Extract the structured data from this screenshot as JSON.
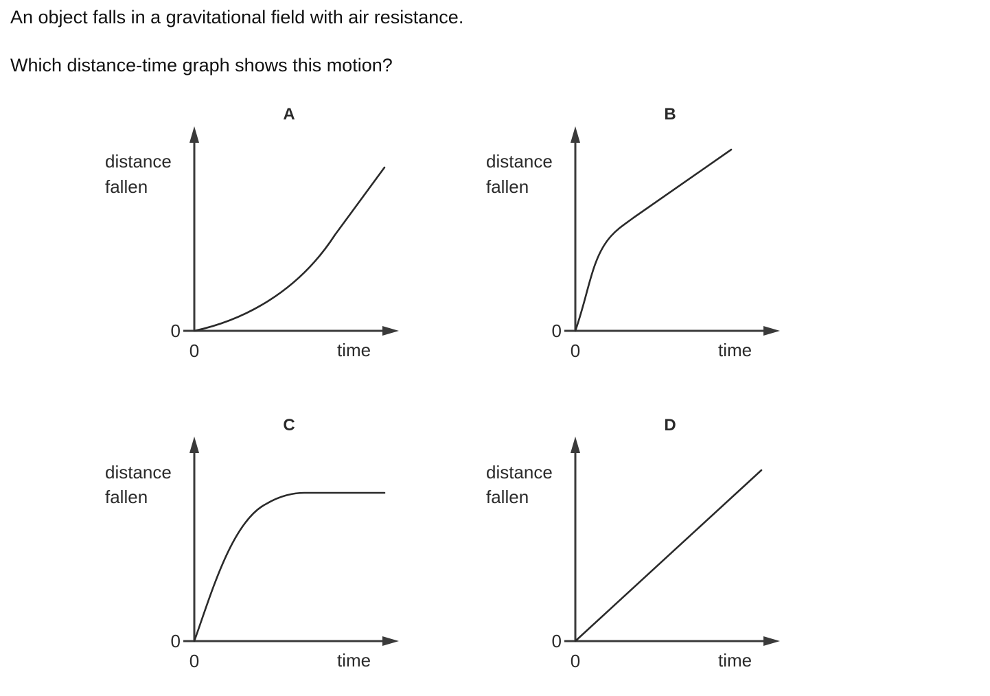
{
  "question": {
    "line1": "An object falls in a gravitational field with air resistance.",
    "line2": "Which distance-time graph shows this motion?"
  },
  "graphs": [
    {
      "option": "A",
      "ylabel_line1": "distance",
      "ylabel_line2": "fallen",
      "xlabel": "time",
      "x_origin": "0",
      "y_origin": "0",
      "curve_shape": "accelerating-curve"
    },
    {
      "option": "B",
      "ylabel_line1": "distance",
      "ylabel_line2": "fallen",
      "xlabel": "time",
      "x_origin": "0",
      "y_origin": "0",
      "curve_shape": "steep-then-linear"
    },
    {
      "option": "C",
      "ylabel_line1": "distance",
      "ylabel_line2": "fallen",
      "xlabel": "time",
      "x_origin": "0",
      "y_origin": "0",
      "curve_shape": "rising-then-flat"
    },
    {
      "option": "D",
      "ylabel_line1": "distance",
      "ylabel_line2": "fallen",
      "xlabel": "time",
      "x_origin": "0",
      "y_origin": "0",
      "curve_shape": "straight-line"
    }
  ],
  "colors": {
    "text": "#111111",
    "axis": "#3a3a3a",
    "curve": "#2a2a2a"
  }
}
